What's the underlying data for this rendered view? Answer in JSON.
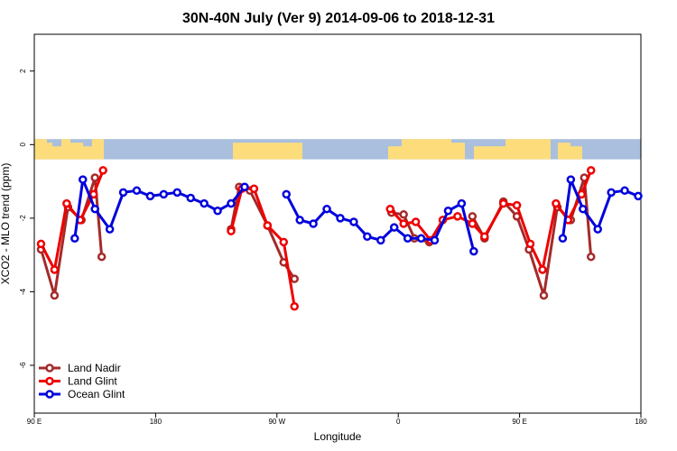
{
  "chart_data": {
    "type": "line",
    "title": "30N-40N July (Ver 9)   2014-09-06 to 2018-12-31",
    "xlabel": "Longitude",
    "ylabel": "XCO2 - MLO trend (ppm)",
    "xlim": [
      90,
      540
    ],
    "ylim": [
      -7.3,
      3.0
    ],
    "x_ticks": [
      {
        "value": 90,
        "label": "90 E"
      },
      {
        "value": 180,
        "label": "180"
      },
      {
        "value": 270,
        "label": "90 W"
      },
      {
        "value": 360,
        "label": "0"
      },
      {
        "value": 450,
        "label": "90 E"
      },
      {
        "value": 540,
        "label": "180"
      }
    ],
    "y_ticks": [
      {
        "value": 2,
        "label": "2"
      },
      {
        "value": 0,
        "label": "0"
      },
      {
        "value": -2,
        "label": "-2"
      },
      {
        "value": -4,
        "label": "-4"
      },
      {
        "value": -6,
        "label": "-6"
      }
    ],
    "legend_position": "bottom-left",
    "map_band": {
      "y_top": 0.15,
      "y_bottom": -0.4,
      "ocean_color": "#a9bfdd",
      "land_color": "#fddc7c"
    },
    "series": [
      {
        "name": "Land Nadir",
        "color": "#a52a2a",
        "segments": [
          [
            [
              95,
              -2.85
            ],
            [
              105,
              -4.1
            ],
            [
              115,
              -1.7
            ],
            [
              125,
              -2.05
            ],
            [
              135,
              -0.9
            ],
            [
              140,
              -3.05
            ]
          ],
          [
            [
              236,
              -2.3
            ],
            [
              242,
              -1.15
            ],
            [
              250,
              -1.25
            ],
            [
              263,
              -2.2
            ],
            [
              275,
              -3.2
            ],
            [
              283,
              -3.65
            ]
          ],
          [
            [
              355,
              -1.85
            ],
            [
              364,
              -1.9
            ],
            [
              372,
              -2.55
            ],
            [
              383,
              -2.65
            ]
          ],
          [
            [
              415,
              -1.95
            ],
            [
              424,
              -2.55
            ],
            [
              438,
              -1.55
            ],
            [
              448,
              -1.95
            ],
            [
              457,
              -2.85
            ],
            [
              468,
              -4.1
            ],
            [
              478,
              -1.7
            ],
            [
              488,
              -2.05
            ],
            [
              498,
              -0.9
            ],
            [
              503,
              -3.05
            ]
          ]
        ]
      },
      {
        "name": "Land Glint",
        "color": "#ee0000",
        "segments": [
          [
            [
              95,
              -2.7
            ],
            [
              105,
              -3.4
            ],
            [
              114,
              -1.6
            ],
            [
              124,
              -2.05
            ],
            [
              134,
              -1.35
            ],
            [
              141,
              -0.7
            ]
          ],
          [
            [
              236,
              -2.35
            ],
            [
              244,
              -1.2
            ],
            [
              253,
              -1.2
            ],
            [
              263,
              -2.2
            ],
            [
              275,
              -2.65
            ],
            [
              283,
              -4.4
            ]
          ],
          [
            [
              354,
              -1.75
            ],
            [
              364,
              -2.15
            ],
            [
              373,
              -2.1
            ],
            [
              384,
              -2.6
            ],
            [
              393,
              -2.05
            ],
            [
              404,
              -1.95
            ],
            [
              415,
              -2.15
            ],
            [
              424,
              -2.5
            ],
            [
              438,
              -1.6
            ],
            [
              448,
              -1.65
            ],
            [
              458,
              -2.7
            ],
            [
              467,
              -3.4
            ],
            [
              477,
              -1.6
            ],
            [
              486,
              -2.05
            ],
            [
              496,
              -1.35
            ],
            [
              503,
              -0.7
            ]
          ]
        ]
      },
      {
        "name": "Ocean Glint",
        "color": "#0000dd",
        "segments": [
          [
            [
              120,
              -2.55
            ],
            [
              126,
              -0.95
            ],
            [
              135,
              -1.75
            ],
            [
              146,
              -2.3
            ],
            [
              156,
              -1.3
            ],
            [
              166,
              -1.25
            ],
            [
              176,
              -1.4
            ],
            [
              186,
              -1.35
            ],
            [
              196,
              -1.3
            ],
            [
              206,
              -1.45
            ],
            [
              216,
              -1.6
            ],
            [
              226,
              -1.8
            ],
            [
              236,
              -1.6
            ],
            [
              246,
              -1.15
            ]
          ],
          [
            [
              277,
              -1.35
            ],
            [
              287,
              -2.05
            ],
            [
              297,
              -2.15
            ],
            [
              307,
              -1.75
            ],
            [
              317,
              -2.0
            ],
            [
              327,
              -2.1
            ],
            [
              337,
              -2.5
            ],
            [
              347,
              -2.6
            ],
            [
              357,
              -2.25
            ],
            [
              367,
              -2.55
            ],
            [
              377,
              -2.55
            ],
            [
              387,
              -2.6
            ],
            [
              397,
              -1.8
            ],
            [
              407,
              -1.6
            ],
            [
              416,
              -2.9
            ]
          ],
          [
            [
              482,
              -2.55
            ],
            [
              488,
              -0.95
            ],
            [
              497,
              -1.75
            ],
            [
              508,
              -2.3
            ],
            [
              518,
              -1.3
            ],
            [
              528,
              -1.25
            ],
            [
              538,
              -1.4
            ]
          ]
        ]
      }
    ]
  }
}
